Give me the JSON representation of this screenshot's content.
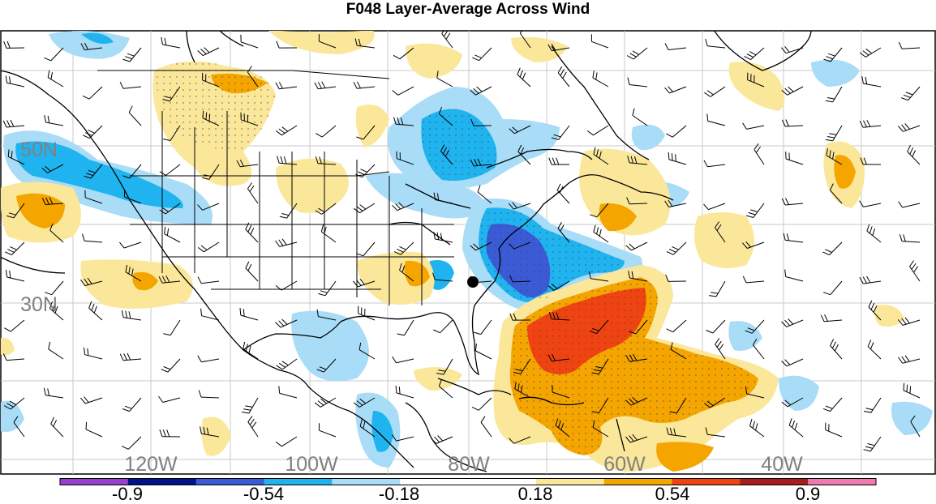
{
  "title": "F048 Layer-Average Across Wind",
  "map": {
    "lon_labels": [
      "120W",
      "100W",
      "80W",
      "60W",
      "40W"
    ],
    "lat_labels": [
      "50N",
      "30N"
    ],
    "marker": "storm-center-dot"
  },
  "colorbar": {
    "levels": [
      "-0.9",
      "-0.54",
      "-0.18",
      "0.18",
      "0.54",
      "0.9"
    ],
    "colors": [
      "#9a3fd0",
      "#00128a",
      "#3b5bd6",
      "#1fb4ef",
      "#a8dcf7",
      "#ffffff",
      "#ffffff",
      "#fbe79a",
      "#f5a500",
      "#ef4412",
      "#a81e1e",
      "#f07ab0"
    ]
  }
}
